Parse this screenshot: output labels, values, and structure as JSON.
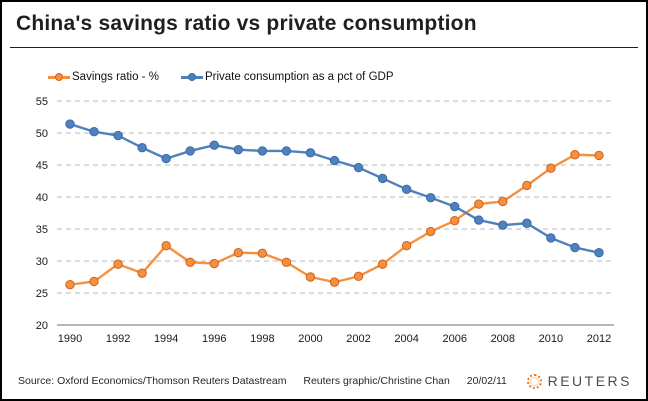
{
  "title": "China's savings ratio vs private consumption",
  "footer": {
    "source": "Source: Oxford Economics/Thomson Reuters Datastream",
    "credit": "Reuters graphic/Christine Chan",
    "date": "20/02/11",
    "logo_text": "REUTERS"
  },
  "colors": {
    "savings_orange": "#f5913e",
    "savings_orange_edge": "#d2601f",
    "consumption_blue": "#4f81bd",
    "consumption_blue_edge": "#3a69a8",
    "grid_gray": "#b8b8b8",
    "axis_gray": "#8c8c8c",
    "reuters_orange": "#e87722"
  },
  "chart_data": {
    "type": "line",
    "title": "China's savings ratio vs private consumption",
    "x": [
      1990,
      1991,
      1992,
      1993,
      1994,
      1995,
      1996,
      1997,
      1998,
      1999,
      2000,
      2001,
      2002,
      2003,
      2004,
      2005,
      2006,
      2007,
      2008,
      2009,
      2010,
      2011,
      2012
    ],
    "series": [
      {
        "name": "Savings ratio - %",
        "color": "#f5913e",
        "marker_edge": "#d2601f",
        "values": [
          26.3,
          26.8,
          29.5,
          28.1,
          32.4,
          29.8,
          29.6,
          31.3,
          31.2,
          29.8,
          27.5,
          26.7,
          27.6,
          29.5,
          32.4,
          34.6,
          36.3,
          38.9,
          39.3,
          41.8,
          44.5,
          46.6,
          46.5
        ]
      },
      {
        "name": "Private consumption as a pct of GDP",
        "color": "#4f81bd",
        "marker_edge": "#3a69a8",
        "values": [
          51.4,
          50.2,
          49.6,
          47.7,
          46.0,
          47.2,
          48.1,
          47.4,
          47.2,
          47.2,
          46.9,
          45.7,
          44.6,
          42.9,
          41.2,
          39.9,
          38.5,
          36.4,
          35.6,
          35.9,
          33.6,
          32.1,
          31.3
        ]
      }
    ],
    "ylim": [
      20,
      55
    ],
    "y_step": 5,
    "x_tick_every": 2,
    "grid": "horizontal-dashed",
    "legend_position": "top"
  }
}
